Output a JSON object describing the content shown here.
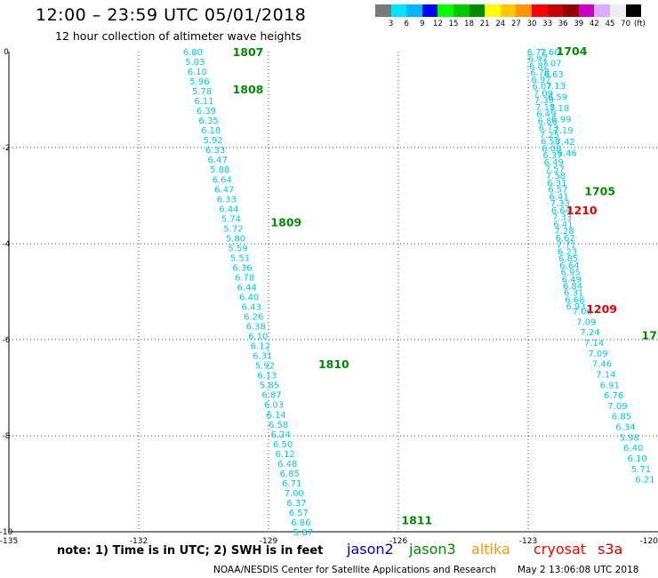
{
  "header": {
    "title": "12:00 – 23:59 UTC 05/01/2018",
    "subtitle": "12 hour collection of altimeter wave heights"
  },
  "legend": {
    "unit": "(ft)",
    "labels": [
      "3",
      "6",
      "9",
      "12",
      "15",
      "18",
      "21",
      "24",
      "27",
      "30",
      "33",
      "36",
      "39",
      "42",
      "45",
      "70"
    ],
    "colors": [
      "#7a7a7a",
      "#00e5ff",
      "#00b4ff",
      "#0000ff",
      "#00ff00",
      "#00c800",
      "#008c00",
      "#ffff00",
      "#ffc800",
      "#ff9600",
      "#ff0000",
      "#c80000",
      "#960000",
      "#c800c8",
      "#dcaaff",
      "#eeeeee",
      "#000000"
    ]
  },
  "axes": {
    "x_ticks": [
      "-135",
      "-132",
      "-129",
      "-126",
      "-123",
      "-120"
    ],
    "y_ticks": [
      "0",
      "-2",
      "-4",
      "-6",
      "-8",
      "-10"
    ]
  },
  "footer": {
    "note": "note:  1) Time is in UTC;  2) SWH is in feet",
    "satellites": [
      {
        "name": "jason2",
        "color": "#0000cc"
      },
      {
        "name": "jason3",
        "color": "#008c00"
      },
      {
        "name": "altika",
        "color": "#ff9600"
      },
      {
        "name": "cryosat",
        "color": "#ff0000"
      },
      {
        "name": "s3a",
        "color": "#c80000"
      }
    ],
    "credit": "NOAA/NESDIS Center for Satellite Applications and Research",
    "generated": "May  2 13:06:08 UTC 2018"
  },
  "map": {
    "lon_range": [
      -135,
      -120
    ],
    "lat_range": [
      -10,
      0
    ],
    "value_color": "#00c8e6",
    "tracks": [
      {
        "name": "track-west",
        "start": [
          -130.75,
          0.0
        ],
        "end": [
          -128.2,
          -10.0
        ],
        "values": [
          "6.80",
          "5.03",
          "6.10",
          "5.96",
          "5.78",
          "6.11",
          "6.39",
          "6.35",
          "6.18",
          "5.92",
          "6.33",
          "6.47",
          "5.88",
          "6.64",
          "6.47",
          "6.33",
          "6.44",
          "5.74",
          "5.72",
          "5.80",
          "5.59",
          "5.51",
          "6.36",
          "6.78",
          "6.44",
          "6.40",
          "6.43",
          "6.26",
          "6.38",
          "6.10",
          "6.12",
          "6.31",
          "5.92",
          "6.13",
          "5.85",
          "6.87",
          "6.03",
          "6.14",
          "6.58",
          "6.24",
          "6.50",
          "6.12",
          "6.48",
          "6.85",
          "6.71",
          "7.00",
          "6.37",
          "6.57",
          "6.86",
          "5.87"
        ]
      },
      {
        "name": "track-east",
        "start": [
          -122.8,
          0.0
        ],
        "end": [
          -121.9,
          -5.3
        ],
        "values": [
          "6.72",
          "6.97",
          "6.82",
          "6.78",
          "6.97",
          "6.07",
          "7.09",
          "7.39",
          "7.18",
          "6.49",
          "6.86",
          "6.73",
          "7.25",
          "6.58",
          "6.08",
          "6.37",
          "6.49",
          "7.57",
          "7.58",
          "6.31",
          "6.57",
          "6.41",
          "7.33",
          "6.64",
          "7.33",
          "6.41",
          "7.28",
          "6.62",
          "7.71",
          "6.23",
          "6.85",
          "6.64",
          "6.95",
          "6.49",
          "6.84",
          "6.31",
          "6.68",
          "6.93"
        ]
      },
      {
        "name": "track-east-inner",
        "start": [
          -122.5,
          0.0
        ],
        "end": [
          -122.1,
          -2.1
        ],
        "values": [
          "7.60",
          "7.07",
          "6.63",
          "7.13",
          "6.59",
          "7.18",
          "6.99",
          "7.19",
          "7.42",
          "6.46"
        ]
      },
      {
        "name": "track-southeast",
        "start": [
          -121.75,
          -5.4
        ],
        "end": [
          -120.3,
          -8.9
        ],
        "values": [
          "7.06",
          "7.09",
          "7.24",
          "7.14",
          "7.09",
          "7.46",
          "7.14",
          "6.91",
          "6.76",
          "7.09",
          "6.85",
          "6.34",
          "5.98",
          "6.40",
          "6.10",
          "5.71",
          "6.21"
        ]
      }
    ],
    "time_labels": [
      {
        "text": "1807",
        "lon": -129.83,
        "lat": 0.0,
        "color": "#008c00"
      },
      {
        "text": "1808",
        "lon": -129.83,
        "lat": -0.78,
        "color": "#008c00"
      },
      {
        "text": "1809",
        "lon": -128.95,
        "lat": -3.55,
        "color": "#008c00"
      },
      {
        "text": "1810",
        "lon": -127.85,
        "lat": -6.5,
        "color": "#008c00"
      },
      {
        "text": "1811",
        "lon": -125.93,
        "lat": -9.75,
        "color": "#008c00"
      },
      {
        "text": "1704",
        "lon": -122.35,
        "lat": 0.02,
        "color": "#008c00"
      },
      {
        "text": "1705",
        "lon": -121.7,
        "lat": -2.9,
        "color": "#008c00"
      },
      {
        "text": "1210",
        "lon": -122.12,
        "lat": -3.3,
        "color": "#e60000"
      },
      {
        "text": "1209",
        "lon": -121.66,
        "lat": -5.35,
        "color": "#e60000"
      },
      {
        "text": "17(",
        "lon": -120.38,
        "lat": -5.9,
        "color": "#008c00"
      }
    ]
  }
}
